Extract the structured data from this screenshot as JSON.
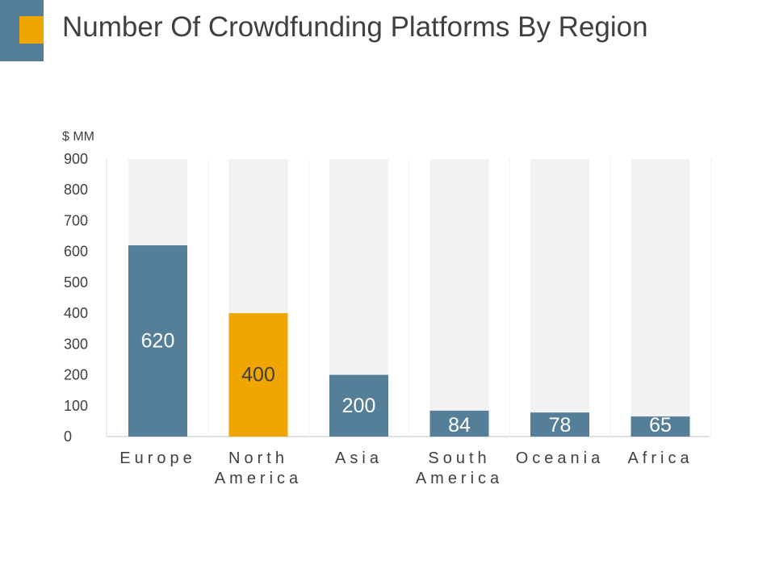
{
  "title": "Number Of Crowdfunding Platforms By Region",
  "colors": {
    "primary": "#557f98",
    "highlight": "#f0a500",
    "track": "#f2f2f2",
    "text": "#404040",
    "value_label_light": "#ffffff",
    "value_label_dark": "#404040"
  },
  "chart_data": {
    "type": "bar",
    "title": "Number Of Crowdfunding Platforms By Region",
    "ylabel": "$ MM",
    "xlabel": "",
    "ylim": [
      0,
      900
    ],
    "yticks": [
      0,
      100,
      200,
      300,
      400,
      500,
      600,
      700,
      800,
      900
    ],
    "categories": [
      [
        "Europe"
      ],
      [
        "North",
        "America"
      ],
      [
        "Asia"
      ],
      [
        "South",
        "America"
      ],
      [
        "Oceania"
      ],
      [
        "Africa"
      ]
    ],
    "values": [
      620,
      400,
      200,
      84,
      78,
      65
    ],
    "highlight_index": 1,
    "background_track_value": 900,
    "grid": false,
    "legend": "none"
  }
}
